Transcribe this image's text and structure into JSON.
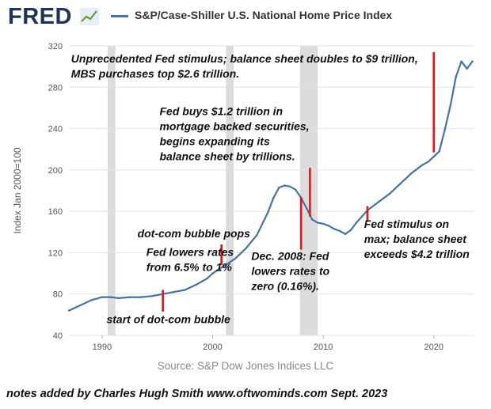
{
  "header": {
    "logo_text": "FRED",
    "logo_icon": "chart-trend-icon",
    "series_title": "S&P/Case-Shiller U.S. National Home Price Index"
  },
  "source": "Source: S&P Dow Jones Indices LLC",
  "footer_note": "notes added by Charles Hugh Smith  www.oftwominds.com  Sept. 2023",
  "colors": {
    "series": "#4572a7",
    "recession": "#dcdcdc",
    "marker": "#e8141a",
    "grid": "#e2e2e2",
    "axis_text": "#555555"
  },
  "chart_data": {
    "type": "line",
    "title": "S&P/Case-Shiller U.S. National Home Price Index",
    "xlabel": "",
    "ylabel": "Index Jan 2000=100",
    "xlim": [
      1987.0,
      2023.6
    ],
    "ylim": [
      40,
      320
    ],
    "x_ticks": [
      1990,
      2000,
      2010,
      2020
    ],
    "y_ticks": [
      40,
      80,
      120,
      160,
      200,
      240,
      280,
      320
    ],
    "grid": "horizontal",
    "legend": "top",
    "recessions": [
      [
        1990.5,
        1991.2
      ],
      [
        2001.2,
        2001.9
      ],
      [
        2007.9,
        2009.5
      ]
    ],
    "series": [
      {
        "name": "S&P/Case-Shiller U.S. National Home Price Index",
        "x": [
          1987.0,
          1988.0,
          1989.0,
          1990.0,
          1990.8,
          1991.5,
          1992.5,
          1993.5,
          1994.5,
          1995.5,
          1996.5,
          1997.5,
          1998.5,
          1999.5,
          2000.0,
          2001.0,
          2002.0,
          2003.0,
          2004.0,
          2005.0,
          2005.5,
          2006.0,
          2006.5,
          2007.0,
          2007.5,
          2008.0,
          2008.5,
          2009.0,
          2009.5,
          2010.0,
          2010.5,
          2011.0,
          2011.5,
          2012.0,
          2012.5,
          2013.0,
          2013.5,
          2014.0,
          2015.0,
          2016.0,
          2017.0,
          2018.0,
          2019.0,
          2019.5,
          2020.0,
          2020.5,
          2021.0,
          2021.5,
          2022.0,
          2022.5,
          2023.0,
          2023.5
        ],
        "values": [
          64,
          69,
          74,
          77,
          77,
          76,
          77,
          77,
          78,
          80,
          82,
          84,
          89,
          95,
          100,
          107,
          114,
          124,
          137,
          159,
          173,
          183,
          185,
          184,
          181,
          173,
          163,
          152,
          149,
          148,
          146,
          143,
          141,
          138,
          142,
          149,
          155,
          161,
          169,
          177,
          187,
          197,
          205,
          208,
          213,
          218,
          239,
          262,
          290,
          305,
          298,
          305
        ]
      }
    ],
    "event_markers": [
      {
        "x": 1995.5,
        "y_from": 63,
        "y_to": 84
      },
      {
        "x": 2000.8,
        "y_from": 108,
        "y_to": 128
      },
      {
        "x": 2008.0,
        "y_from": 123,
        "y_to": 174
      },
      {
        "x": 2008.8,
        "y_from": 155,
        "y_to": 202
      },
      {
        "x": 2014.0,
        "y_from": 150,
        "y_to": 165
      },
      {
        "x": 2020.0,
        "y_from": 217,
        "y_to": 314
      }
    ],
    "annotations": [
      {
        "x": 1987.2,
        "y": 304,
        "lines": [
          "Unprecedented Fed stimulus; balance sheet doubles to $9 trillion,",
          "MBS purchases top $2.6 trillion."
        ]
      },
      {
        "x": 1995.2,
        "y": 253,
        "lines": [
          "Fed buys $1.2 trillion in",
          "mortgage backed securities,",
          "begins expanding its",
          "balance sheet by trillions."
        ]
      },
      {
        "x": 1993.2,
        "y": 135,
        "lines": [
          "dot-com bubble pops"
        ]
      },
      {
        "x": 1994.0,
        "y": 117,
        "lines": [
          "Fed lowers rates",
          "from 6.5% to 1%"
        ]
      },
      {
        "x": 2003.5,
        "y": 113,
        "lines": [
          "Dec. 2008: Fed",
          "lowers rates to",
          "zero (0.16%)."
        ]
      },
      {
        "x": 2013.7,
        "y": 144,
        "lines": [
          "Fed stimulus on",
          "max; balance sheet",
          "exceeds $4.2 trillion"
        ]
      },
      {
        "x": 1990.4,
        "y": 52,
        "lines": [
          "start of dot-com bubble"
        ]
      }
    ]
  }
}
